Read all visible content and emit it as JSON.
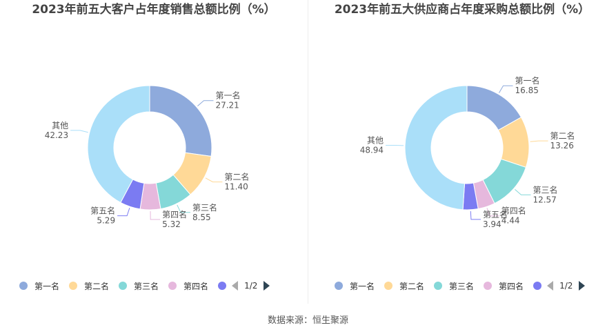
{
  "chart_data": [
    {
      "type": "pie",
      "title": "2023年前五大客户占年度销售总额比例（%）",
      "categories": [
        "第一名",
        "第二名",
        "第三名",
        "第四名",
        "第五名",
        "其他"
      ],
      "values": [
        27.21,
        11.4,
        8.55,
        5.32,
        5.29,
        42.23
      ],
      "value_labels": [
        "27.21",
        "11.40",
        "8.55",
        "5.32",
        "5.29",
        "42.23"
      ],
      "colors": [
        "#8eaadc",
        "#ffd997",
        "#84d8d8",
        "#e6b8dd",
        "#7b7bf2",
        "#aadff9"
      ],
      "legend": {
        "items": [
          "第一名",
          "第二名",
          "第三名",
          "第四名"
        ],
        "colors": [
          "#8eaadc",
          "#ffd997",
          "#84d8d8",
          "#e6b8dd",
          "#7b7bf2"
        ],
        "page": "1/2",
        "position": "bottom"
      }
    },
    {
      "type": "pie",
      "title": "2023年前五大供应商占年度采购总额比例（%）",
      "categories": [
        "第一名",
        "第二名",
        "第三名",
        "第四名",
        "第五名",
        "其他"
      ],
      "values": [
        16.85,
        13.26,
        12.57,
        4.44,
        3.94,
        48.94
      ],
      "value_labels": [
        "16.85",
        "13.26",
        "12.57",
        "4.44",
        "3.94",
        "48.94"
      ],
      "colors": [
        "#8eaadc",
        "#ffd997",
        "#84d8d8",
        "#e6b8dd",
        "#7b7bf2",
        "#aadff9"
      ],
      "legend": {
        "items": [
          "第一名",
          "第二名",
          "第三名",
          "第四名"
        ],
        "colors": [
          "#8eaadc",
          "#ffd997",
          "#84d8d8",
          "#e6b8dd",
          "#7b7bf2"
        ],
        "page": "1/2",
        "position": "bottom"
      }
    }
  ],
  "source": "数据来源：恒生聚源"
}
